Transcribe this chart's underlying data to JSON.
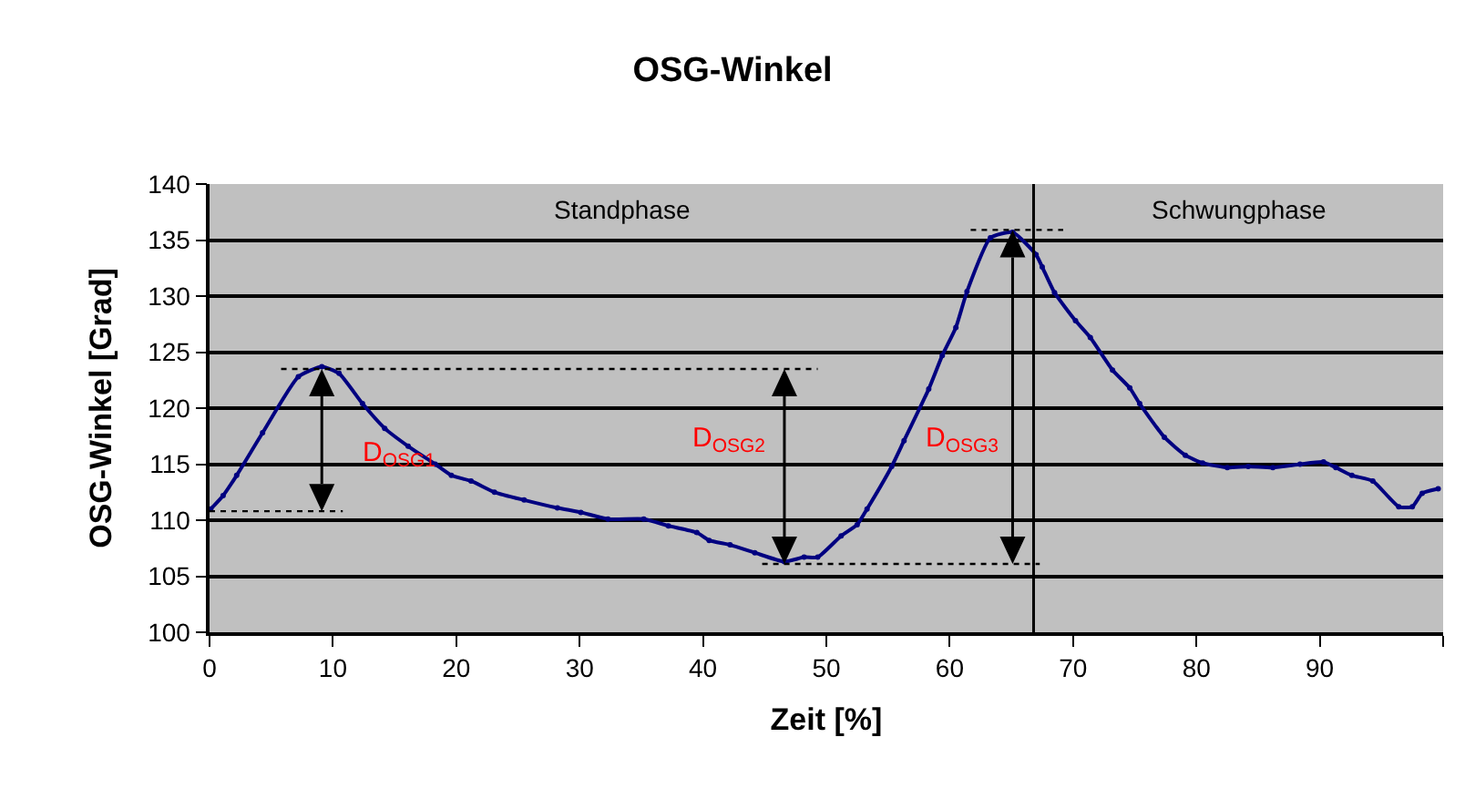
{
  "chart_data": {
    "type": "line",
    "title": "OSG-Winkel",
    "xlabel": "Zeit [%]",
    "ylabel": "OSG-Winkel [Grad]",
    "xlim": [
      0,
      100
    ],
    "xticks": [
      0,
      10,
      20,
      30,
      40,
      50,
      60,
      70,
      80,
      90,
      {
        "value": 100,
        "label": null
      }
    ],
    "ylim": [
      100,
      140
    ],
    "yticks": [
      100,
      105,
      110,
      115,
      120,
      125,
      130,
      135,
      140
    ],
    "grid": "y",
    "series": [
      {
        "color": "#000080",
        "marker": "circle",
        "line_style": "solid",
        "x": [
          0.1,
          1.1,
          2.2,
          4.3,
          7.2,
          9.1,
          10.5,
          12.4,
          14.2,
          16.1,
          18.3,
          19.6,
          21.2,
          23.1,
          25.5,
          28.2,
          30.1,
          32.3,
          35.2,
          37.2,
          39.5,
          40.5,
          42.2,
          44.2,
          46.6,
          48.2,
          49.3,
          51.2,
          52.5,
          53.3,
          55.3,
          56.3,
          58.3,
          59.4,
          60.5,
          61.4,
          63.3,
          65.1,
          67.0,
          67.5,
          68.5,
          70.2,
          71.4,
          73.2,
          74.6,
          75.4,
          77.4,
          79.1,
          80.5,
          82.5,
          84.2,
          86.2,
          88.4,
          90.3,
          91.3,
          92.6,
          94.3,
          96.4,
          97.5,
          98.3,
          99.6
        ],
        "values": [
          111.0,
          112.2,
          114.0,
          117.8,
          122.8,
          123.7,
          123.1,
          120.4,
          118.2,
          116.6,
          115.0,
          114.0,
          113.5,
          112.5,
          111.8,
          111.1,
          110.7,
          110.1,
          110.1,
          109.5,
          108.9,
          108.2,
          107.8,
          107.1,
          106.3,
          106.7,
          106.7,
          108.6,
          109.6,
          111.0,
          114.8,
          117.1,
          121.7,
          124.7,
          127.2,
          130.4,
          135.2,
          135.7,
          133.7,
          132.6,
          130.3,
          127.8,
          126.3,
          123.4,
          121.8,
          120.4,
          117.4,
          115.8,
          115.1,
          114.7,
          114.8,
          114.7,
          115.0,
          115.2,
          114.7,
          114.0,
          113.5,
          111.2,
          111.2,
          112.4,
          112.8
        ]
      },
      {
        "color": "#000000",
        "marker": "none",
        "line_style": "dotted",
        "x": [
          5.8,
          49.3
        ],
        "values": [
          123.5,
          123.5
        ]
      },
      {
        "color": "#000000",
        "marker": "none",
        "line_style": "dotted",
        "x": [
          0,
          10.8
        ],
        "values": [
          110.8,
          110.8
        ]
      },
      {
        "color": "#000000",
        "marker": "none",
        "line_style": "dotted",
        "x": [
          44.8,
          67.3
        ],
        "values": [
          106.1,
          106.1
        ]
      },
      {
        "color": "#000000",
        "marker": "none",
        "line_style": "dotted",
        "x": [
          61.7,
          69.2
        ],
        "values": [
          135.9,
          135.9
        ]
      }
    ],
    "ref_lines": [
      {
        "axis": "x",
        "value": 66.8,
        "color": "#000000",
        "line_style": "solid"
      }
    ],
    "annotations": [
      "Standphase",
      "Schwungphase",
      "D$_{OSG1}$",
      "D$_{OSG2}$",
      "D$_{OSG3}$"
    ]
  }
}
